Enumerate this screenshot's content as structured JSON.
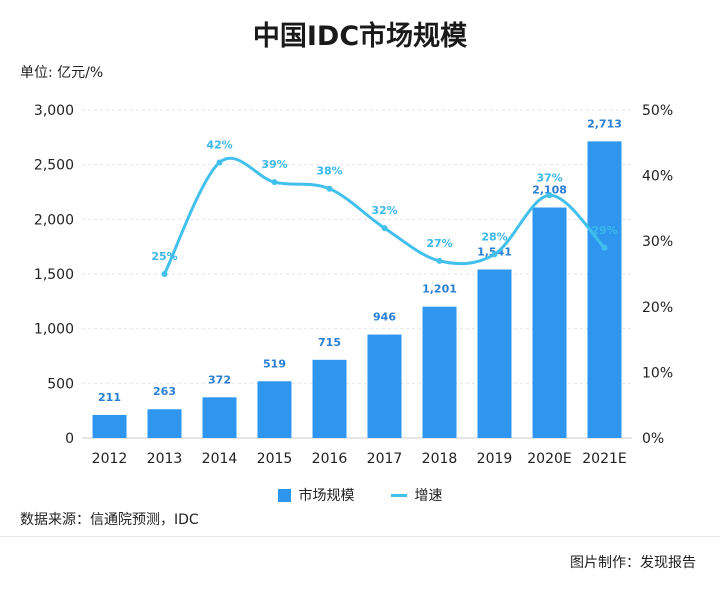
{
  "title": "中国IDC市场规模",
  "unit_label": "单位: 亿元/%",
  "legend": {
    "bar_label": "市场规模",
    "line_label": "增速"
  },
  "source": "数据来源：信通院预测，IDC",
  "credit": "图片制作：发现报告",
  "colors": {
    "bar": "#2e96ef",
    "line": "#42c0ec",
    "bar_label": "#2a7fd4",
    "line_label": "#3cb8ea",
    "grid": "#e6e6e6"
  },
  "chart_data": {
    "type": "bar",
    "categories": [
      "2012",
      "2013",
      "2014",
      "2015",
      "2016",
      "2017",
      "2018",
      "2019",
      "2020E",
      "2021E"
    ],
    "series": [
      {
        "name": "市场规模",
        "type": "bar",
        "axis": "left",
        "values": [
          211,
          263,
          372,
          519,
          715,
          946,
          1201,
          1541,
          2108,
          2713
        ],
        "labels": [
          "211",
          "263",
          "372",
          "519",
          "715",
          "946",
          "1,201",
          "1,541",
          "2,108",
          "2,713"
        ]
      },
      {
        "name": "增速",
        "type": "line",
        "axis": "right",
        "values": [
          null,
          25,
          42,
          39,
          38,
          32,
          27,
          28,
          37,
          29
        ],
        "labels": [
          "",
          "25%",
          "42%",
          "39%",
          "38%",
          "32%",
          "27%",
          "28%",
          "37%",
          "29%"
        ]
      }
    ],
    "y_left": {
      "ylim": [
        0,
        3000
      ],
      "ticks": [
        0,
        500,
        1000,
        1500,
        2000,
        2500,
        3000
      ],
      "tick_labels": [
        "0",
        "500",
        "1,000",
        "1,500",
        "2,000",
        "2,500",
        "3,000"
      ]
    },
    "y_right": {
      "ylim": [
        0,
        50
      ],
      "ticks": [
        0,
        10,
        20,
        30,
        40,
        50
      ],
      "tick_labels": [
        "0%",
        "10%",
        "20%",
        "30%",
        "40%",
        "50%"
      ]
    },
    "grid": true,
    "legend_position": "bottom"
  }
}
